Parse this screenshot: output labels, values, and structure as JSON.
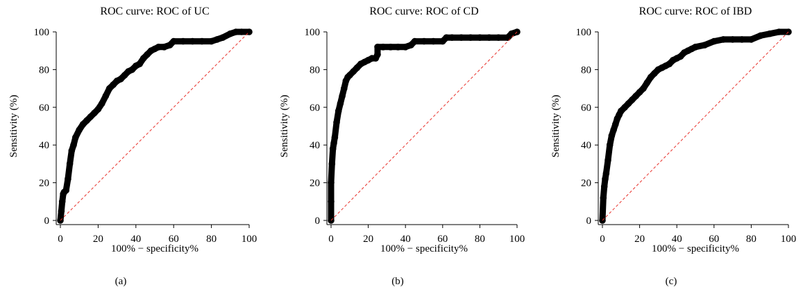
{
  "charts": [
    {
      "panel_label": "(a)",
      "title": "ROC curve: ROC of UC",
      "xlabel": "100% − specificity%",
      "ylabel": "Sensitivity (%)",
      "xticks": [
        "0",
        "20",
        "40",
        "60",
        "80",
        "100"
      ],
      "yticks": [
        "0",
        "20",
        "40",
        "60",
        "80",
        "100"
      ]
    },
    {
      "panel_label": "(b)",
      "title": "ROC curve: ROC of CD",
      "xlabel": "100% − specificity%",
      "ylabel": "Sensitivity (%)",
      "xticks": [
        "0",
        "20",
        "40",
        "60",
        "80",
        "100"
      ],
      "yticks": [
        "0",
        "20",
        "40",
        "60",
        "80",
        "100"
      ]
    },
    {
      "panel_label": "(c)",
      "title": "ROC curve: ROC of IBD",
      "xlabel": "100% − specificity%",
      "ylabel": "Sensitivity (%)",
      "xticks": [
        "0",
        "20",
        "40",
        "60",
        "80",
        "100"
      ],
      "yticks": [
        "0",
        "20",
        "40",
        "60",
        "80",
        "100"
      ]
    }
  ],
  "chart_data": [
    {
      "type": "line",
      "title": "ROC curve: ROC of UC",
      "xlabel": "100% − specificity%",
      "ylabel": "Sensitivity (%)",
      "xlim": [
        0,
        100
      ],
      "ylim": [
        0,
        100
      ],
      "grid": false,
      "colors": {
        "roc": "#000000",
        "reference": "#e8302a"
      },
      "series": [
        {
          "style": "roc-markers",
          "x": [
            0,
            0.5,
            1,
            1.5,
            2,
            3,
            4,
            5,
            6,
            7,
            8,
            10,
            12,
            14,
            16,
            18,
            20,
            22,
            24,
            26,
            28,
            30,
            32,
            34,
            36,
            38,
            40,
            42,
            44,
            46,
            48,
            50,
            52,
            55,
            58,
            60,
            65,
            70,
            75,
            80,
            83,
            86,
            90,
            93,
            96,
            100
          ],
          "y": [
            0,
            5,
            10,
            14,
            15,
            16,
            22,
            30,
            37,
            40,
            44,
            48,
            51,
            53,
            55,
            57,
            59,
            62,
            66,
            70,
            72,
            74,
            75,
            77,
            79,
            80,
            82,
            83,
            86,
            88,
            90,
            91,
            92,
            92,
            93,
            95,
            95,
            95,
            95,
            95,
            96,
            97,
            99,
            100,
            100,
            100
          ]
        },
        {
          "style": "reference-dashed",
          "x": [
            0,
            100
          ],
          "y": [
            0,
            100
          ]
        }
      ]
    },
    {
      "type": "line",
      "title": "ROC curve: ROC of CD",
      "xlabel": "100% − specificity%",
      "ylabel": "Sensitivity (%)",
      "xlim": [
        0,
        100
      ],
      "ylim": [
        0,
        100
      ],
      "grid": false,
      "colors": {
        "roc": "#000000",
        "reference": "#e8302a"
      },
      "series": [
        {
          "style": "roc-markers",
          "x": [
            0,
            0,
            0,
            0.5,
            1,
            1.5,
            2,
            3,
            4,
            5,
            6,
            7,
            8,
            9,
            10,
            12,
            14,
            16,
            18,
            20,
            22,
            24,
            25,
            25,
            28,
            32,
            36,
            40,
            43,
            45,
            50,
            55,
            60,
            62,
            65,
            70,
            75,
            80,
            85,
            90,
            95,
            97,
            100
          ],
          "y": [
            0,
            10,
            20,
            30,
            38,
            41,
            44,
            52,
            58,
            62,
            66,
            70,
            74,
            76,
            77,
            79,
            81,
            83,
            84,
            85,
            86,
            86,
            88,
            92,
            92,
            92,
            92,
            92,
            93,
            95,
            95,
            95,
            95,
            97,
            97,
            97,
            97,
            97,
            97,
            97,
            97,
            99,
            100
          ]
        },
        {
          "style": "reference-dashed",
          "x": [
            0,
            100
          ],
          "y": [
            0,
            100
          ]
        }
      ]
    },
    {
      "type": "line",
      "title": "ROC curve: ROC of IBD",
      "xlabel": "100% − specificity%",
      "ylabel": "Sensitivity (%)",
      "xlim": [
        0,
        100
      ],
      "ylim": [
        0,
        100
      ],
      "grid": false,
      "colors": {
        "roc": "#000000",
        "reference": "#e8302a"
      },
      "series": [
        {
          "style": "roc-markers",
          "x": [
            0,
            0.5,
            1,
            1.5,
            2,
            3,
            4,
            5,
            6,
            7,
            8,
            9,
            10,
            12,
            14,
            16,
            18,
            20,
            22,
            24,
            26,
            28,
            30,
            32,
            34,
            36,
            38,
            40,
            42,
            44,
            46,
            48,
            50,
            55,
            60,
            65,
            70,
            75,
            80,
            85,
            90,
            95,
            100
          ],
          "y": [
            0,
            12,
            18,
            22,
            25,
            32,
            40,
            45,
            48,
            51,
            54,
            56,
            58,
            60,
            62,
            64,
            66,
            68,
            70,
            73,
            76,
            78,
            80,
            81,
            82,
            83,
            85,
            86,
            87,
            89,
            90,
            91,
            92,
            93,
            95,
            96,
            96,
            96,
            96,
            98,
            99,
            100,
            100
          ]
        },
        {
          "style": "reference-dashed",
          "x": [
            0,
            100
          ],
          "y": [
            0,
            100
          ]
        }
      ]
    }
  ]
}
